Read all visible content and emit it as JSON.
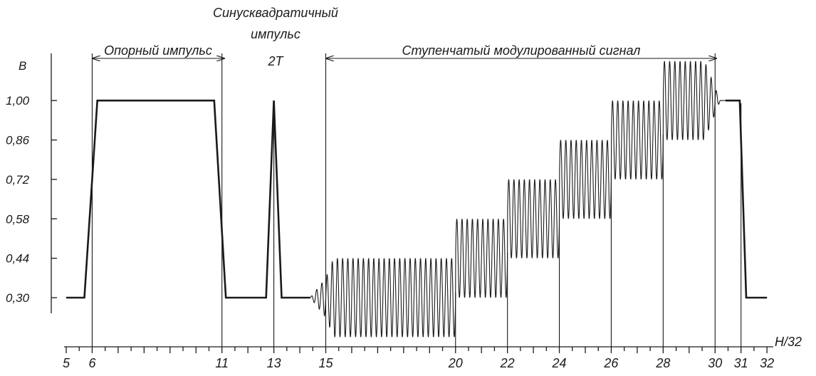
{
  "y_axis": {
    "title": "В",
    "ticks": [
      "1,00",
      "0,86",
      "0,72",
      "0,58",
      "0,44",
      "0,30"
    ]
  },
  "x_axis": {
    "title": "H/32",
    "labels": [
      "5",
      "6",
      "11",
      "13",
      "15",
      "20",
      "22",
      "24",
      "26",
      "28",
      "30",
      "31",
      "32"
    ]
  },
  "annotations": {
    "reference_pulse": "Опорный импульс",
    "sine_squared_line1": "Синусквадратичный",
    "sine_squared_line2": "импульс",
    "sine_squared_line3": "2T",
    "staircase": "Ступенчатый модулированный сигнал"
  },
  "colors": {
    "ink": "#1a1a1a",
    "background": "#ffffff"
  }
}
